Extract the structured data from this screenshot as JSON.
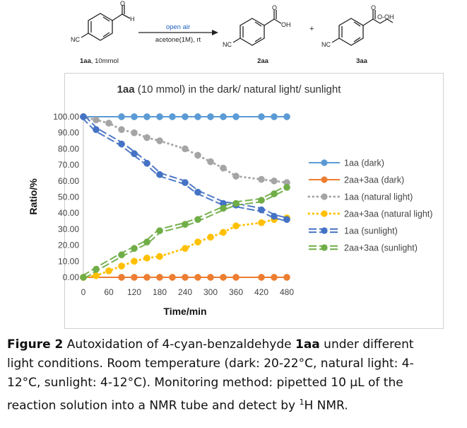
{
  "scheme": {
    "reactant_label": "1aa",
    "reactant_amount": ", 10mmol",
    "product1_label": "2aa",
    "product2_label": "3aa",
    "arrow_top": "open air",
    "arrow_bottom": "acetone(1M), rt",
    "plus": "+",
    "atoms": {
      "nc": "NC",
      "h": "H",
      "oh": "OH",
      "o": "O",
      "ooh": "O-OH"
    }
  },
  "chart_data": {
    "type": "line",
    "title_bold": "1aa",
    "title_rest": " (10 mmol) in the dark/ natural light/ sunlight",
    "xlabel": "Time/min",
    "ylabel": "Ratio/%",
    "xlim": [
      0,
      480
    ],
    "ylim": [
      0,
      100
    ],
    "xticks": [
      "0",
      "60",
      "120",
      "180",
      "240",
      "300",
      "360",
      "420",
      "480"
    ],
    "yticks": [
      "0.00",
      "10.00",
      "20.00",
      "30.00",
      "40.00",
      "50.00",
      "60.00",
      "70.00",
      "80.00",
      "90.00",
      "100.00"
    ],
    "legend_position": "right",
    "series": [
      {
        "name": "1aa (dark)",
        "color": "#5b9bd5",
        "style": "solid",
        "x": [
          0,
          90,
          120,
          150,
          180,
          210,
          240,
          270,
          300,
          330,
          360,
          420,
          450,
          480
        ],
        "y": [
          100,
          100,
          100,
          100,
          100,
          100,
          100,
          100,
          100,
          100,
          100,
          100,
          100,
          100
        ]
      },
      {
        "name": "2aa+3aa (dark)",
        "color": "#ed7d31",
        "style": "solid",
        "x": [
          0,
          90,
          120,
          150,
          180,
          210,
          240,
          270,
          300,
          330,
          360,
          420,
          450,
          480
        ],
        "y": [
          0,
          0,
          0,
          0,
          0,
          0,
          0,
          0,
          0,
          0,
          0,
          0,
          0,
          0
        ]
      },
      {
        "name": "1aa (natural light)",
        "color": "#a5a5a5",
        "style": "dotted",
        "x": [
          0,
          30,
          60,
          90,
          120,
          150,
          180,
          240,
          270,
          300,
          330,
          360,
          420,
          450,
          480
        ],
        "y": [
          100,
          98,
          96,
          92,
          90,
          87,
          85,
          80,
          76,
          72,
          68,
          63,
          61,
          60,
          59
        ]
      },
      {
        "name": "2aa+3aa (natural light)",
        "color": "#ffc000",
        "style": "dotted",
        "x": [
          0,
          30,
          60,
          90,
          120,
          150,
          180,
          240,
          270,
          300,
          330,
          360,
          420,
          450,
          480
        ],
        "y": [
          0,
          1,
          4,
          7,
          10,
          12,
          13,
          18,
          22,
          25,
          28,
          32,
          34,
          36,
          37
        ]
      },
      {
        "name": "1aa (sunlight)",
        "color": "#4472c4",
        "style": "dash",
        "x": [
          0,
          30,
          90,
          120,
          150,
          180,
          240,
          270,
          330,
          360,
          420,
          450,
          480
        ],
        "y": [
          100,
          92,
          83,
          77,
          71,
          64,
          59,
          53,
          46,
          45,
          42,
          38,
          36
        ]
      },
      {
        "name": "2aa+3aa (sunlight)",
        "color": "#70ad47",
        "style": "dash",
        "x": [
          0,
          30,
          90,
          120,
          150,
          180,
          240,
          270,
          330,
          360,
          420,
          450,
          480
        ],
        "y": [
          0,
          5,
          14,
          18,
          22,
          29,
          33,
          36,
          43,
          46,
          48,
          52,
          56
        ]
      }
    ]
  },
  "caption": {
    "label": "Figure 2",
    "line1_a": " Autoxidation of 4-cyan-benzaldehyde ",
    "compound": "1aa",
    "line1_b": " under different",
    "line2": "light conditions. Room temperature (dark: 20-22°C, natural light: 4-",
    "line3": "12°C, sunlight: 4-12°C). Monitoring method: pipetted 10 µL of the",
    "line4_a": "reaction solution into a NMR tube and detect by ",
    "sup": "1",
    "line4_b": "H NMR."
  }
}
